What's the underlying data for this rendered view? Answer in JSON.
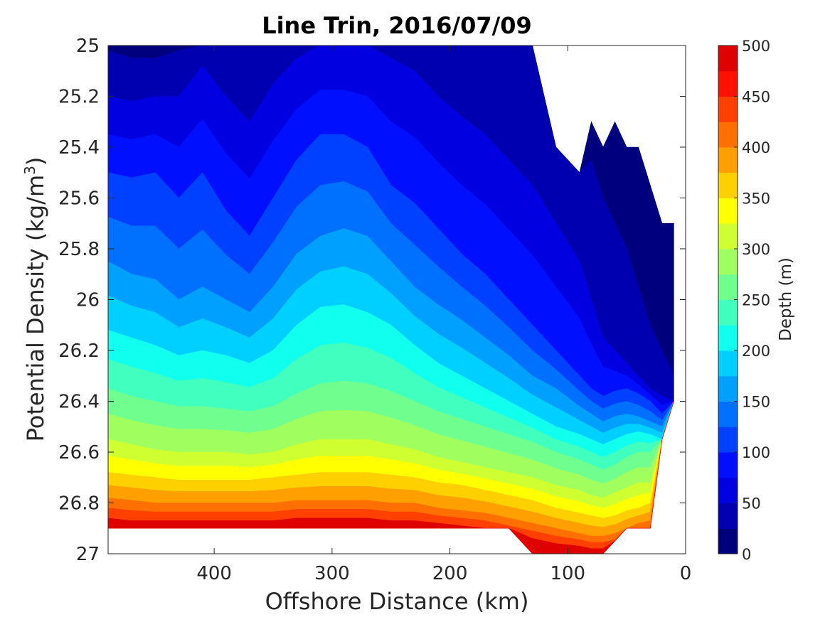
{
  "chart_data": {
    "type": "contourf",
    "title": "Line Trin, 2016/07/09",
    "xlabel": "Offshore Distance (km)",
    "ylabel_main": "Potential Density (kg/m",
    "ylabel_sup": "3",
    "ylabel_close": ")",
    "colorbar_label": "Depth (m)",
    "xlim": [
      490,
      0
    ],
    "x_reversed": true,
    "ylim": [
      25,
      27
    ],
    "y_reversed": true,
    "x_ticks": [
      400,
      300,
      200,
      100,
      0
    ],
    "x_tick_labels": [
      "400",
      "300",
      "200",
      "100",
      "0"
    ],
    "y_ticks": [
      25,
      25.2,
      25.4,
      25.6,
      25.8,
      26,
      26.2,
      26.4,
      26.6,
      26.8,
      27
    ],
    "y_tick_labels": [
      "25",
      "25.2",
      "25.4",
      "25.6",
      "25.8",
      "26",
      "26.2",
      "26.4",
      "26.6",
      "26.8",
      "27"
    ],
    "colorbar_range": [
      0,
      500
    ],
    "colorbar_ticks": [
      0,
      50,
      100,
      150,
      200,
      250,
      300,
      350,
      400,
      450,
      500
    ],
    "colorbar_tick_labels": [
      "0",
      "50",
      "100",
      "150",
      "200",
      "250",
      "300",
      "350",
      "400",
      "450",
      "500"
    ],
    "contour_levels": [
      0,
      25,
      50,
      75,
      100,
      125,
      150,
      175,
      200,
      225,
      250,
      275,
      300,
      325,
      350,
      375,
      400,
      425,
      450,
      475,
      500
    ],
    "colormap": "jet",
    "level_colors": [
      "#00007f",
      "#0000b0",
      "#0000e0",
      "#0010ff",
      "#0040ff",
      "#0070ff",
      "#00a0ff",
      "#00d0ff",
      "#10ffef",
      "#40ffbf",
      "#70ff8f",
      "#a0ff5f",
      "#cfff30",
      "#ffff00",
      "#ffd000",
      "#ffa000",
      "#ff7000",
      "#ff4000",
      "#ff1000",
      "#df0000",
      "#af0000"
    ],
    "x": [
      490,
      470,
      450,
      430,
      410,
      390,
      370,
      350,
      330,
      310,
      290,
      270,
      250,
      230,
      210,
      190,
      170,
      150,
      130,
      110,
      90,
      80,
      70,
      60,
      50,
      40,
      30,
      20,
      10
    ],
    "top_boundary": [
      25,
      25,
      25,
      25,
      25,
      25,
      25,
      25,
      25,
      25,
      25,
      25,
      25,
      25,
      25,
      25,
      25,
      25,
      25,
      25.4,
      25.5,
      25.3,
      25.4,
      25.3,
      25.4,
      25.4,
      25.55,
      25.7,
      25.7
    ],
    "bottom_boundary": [
      26.9,
      26.9,
      26.9,
      26.9,
      26.9,
      26.9,
      26.9,
      26.9,
      26.9,
      26.9,
      26.9,
      26.9,
      26.9,
      26.9,
      26.9,
      26.9,
      26.9,
      26.9,
      27,
      27,
      27,
      27,
      27,
      26.95,
      26.9,
      26.9,
      26.9,
      26.55,
      26.4
    ],
    "isopycnal_depth_contours": [
      {
        "depth": 25,
        "y": [
          25.02,
          25.05,
          25.05,
          25.02,
          25.0,
          25.0,
          25.0,
          25.0,
          25.0,
          25.0,
          25.0,
          25.0,
          25.0,
          25.0,
          25.0,
          25.0,
          25.0,
          25.0,
          25.0,
          25.4,
          25.5,
          25.45,
          25.6,
          25.7,
          25.8,
          25.95,
          26.1,
          26.2,
          26.3
        ]
      },
      {
        "depth": 50,
        "y": [
          25.2,
          25.22,
          25.2,
          25.2,
          25.08,
          25.2,
          25.3,
          25.15,
          25.05,
          25.0,
          25.0,
          25.0,
          25.05,
          25.1,
          25.2,
          25.28,
          25.35,
          25.45,
          25.55,
          25.7,
          25.85,
          26.0,
          26.15,
          26.2,
          26.25,
          26.3,
          26.35,
          26.38,
          26.4
        ]
      },
      {
        "depth": 100,
        "y": [
          25.5,
          25.52,
          25.5,
          25.6,
          25.5,
          25.65,
          25.75,
          25.6,
          25.45,
          25.35,
          25.35,
          25.4,
          25.55,
          25.62,
          25.72,
          25.82,
          25.9,
          26.0,
          26.1,
          26.2,
          26.3,
          26.35,
          26.38,
          26.36,
          26.35,
          26.37,
          26.4,
          26.45,
          26.5
        ]
      },
      {
        "depth": 150,
        "y": [
          25.85,
          25.9,
          25.92,
          26.0,
          25.95,
          26.0,
          26.05,
          25.95,
          25.82,
          25.75,
          25.72,
          25.75,
          25.85,
          25.95,
          26.02,
          26.08,
          26.15,
          26.22,
          26.3,
          26.35,
          26.42,
          26.45,
          26.48,
          26.46,
          26.45,
          26.46,
          26.48,
          26.5,
          26.52
        ]
      },
      {
        "depth": 200,
        "y": [
          26.12,
          26.15,
          26.18,
          26.22,
          26.2,
          26.22,
          26.25,
          26.2,
          26.1,
          26.03,
          26.02,
          26.05,
          26.1,
          26.18,
          26.25,
          26.3,
          26.35,
          26.4,
          26.45,
          26.5,
          26.53,
          26.55,
          26.57,
          26.55,
          26.53,
          26.52,
          26.53,
          26.55,
          26.57
        ]
      },
      {
        "depth": 250,
        "y": [
          26.35,
          26.38,
          26.4,
          26.42,
          26.42,
          26.43,
          26.44,
          26.42,
          26.37,
          26.33,
          26.32,
          26.33,
          26.36,
          26.4,
          26.44,
          26.47,
          26.5,
          26.53,
          26.56,
          26.6,
          26.63,
          26.65,
          26.67,
          26.65,
          26.62,
          26.6,
          26.6,
          26.61,
          26.62
        ]
      },
      {
        "depth": 300,
        "y": [
          26.55,
          26.57,
          26.59,
          26.6,
          26.6,
          26.6,
          26.61,
          26.6,
          26.57,
          26.55,
          26.55,
          26.55,
          26.57,
          26.59,
          26.62,
          26.64,
          26.66,
          26.68,
          26.7,
          26.73,
          26.75,
          26.77,
          26.78,
          26.76,
          26.74,
          26.72,
          26.72,
          26.72,
          26.72
        ]
      },
      {
        "depth": 350,
        "y": [
          26.68,
          26.69,
          26.7,
          26.71,
          26.71,
          26.71,
          26.71,
          26.7,
          26.69,
          26.68,
          26.68,
          26.68,
          26.69,
          26.7,
          26.72,
          26.73,
          26.75,
          26.77,
          26.79,
          26.82,
          26.84,
          26.85,
          26.86,
          26.85,
          26.83,
          26.82,
          26.8,
          26.8,
          26.8
        ]
      },
      {
        "depth": 400,
        "y": [
          26.78,
          26.79,
          26.8,
          26.8,
          26.8,
          26.8,
          26.8,
          26.8,
          26.79,
          26.79,
          26.79,
          26.79,
          26.8,
          26.8,
          26.82,
          26.83,
          26.84,
          26.86,
          26.88,
          26.9,
          26.92,
          26.93,
          26.93,
          26.92,
          26.9,
          26.88,
          26.87,
          26.87,
          26.87
        ]
      },
      {
        "depth": 450,
        "y": [
          26.86,
          26.87,
          26.87,
          26.87,
          26.87,
          26.87,
          26.87,
          26.87,
          26.86,
          26.86,
          26.86,
          26.86,
          26.87,
          26.87,
          26.88,
          26.89,
          26.9,
          26.92,
          26.94,
          26.96,
          26.97,
          26.98,
          26.98,
          26.97,
          26.95,
          26.94,
          26.93,
          26.93,
          26.93
        ]
      }
    ]
  }
}
